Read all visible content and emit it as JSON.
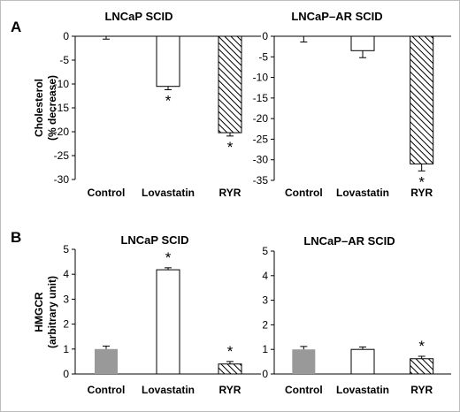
{
  "chart_data": [
    {
      "panel": "A",
      "type": "bar",
      "title": "LNCaP SCID",
      "ylabel": [
        "Cholesterol",
        "(% decrease)"
      ],
      "ylim": [
        -30,
        0
      ],
      "yticks": [
        0,
        -5,
        -10,
        -15,
        -20,
        -25,
        -30
      ],
      "categories": [
        "Control",
        "Lovastatin",
        "RYR"
      ],
      "values": [
        0,
        -10.5,
        -20.2
      ],
      "errors": [
        0.6,
        0.7,
        0.7
      ],
      "fills": [
        "#ffffff",
        "#ffffff",
        "hatch"
      ],
      "significance": [
        "",
        "*",
        "*"
      ]
    },
    {
      "panel": "",
      "type": "bar",
      "title": "LNCaP–AR SCID",
      "ylabel": [],
      "ylim": [
        -35,
        0
      ],
      "yticks": [
        0,
        -5,
        -10,
        -15,
        -20,
        -25,
        -30,
        -35
      ],
      "categories": [
        "Control",
        "Lovastatin",
        "RYR"
      ],
      "values": [
        0,
        -3.5,
        -31
      ],
      "errors": [
        1.4,
        1.7,
        1.7
      ],
      "fills": [
        "#ffffff",
        "#ffffff",
        "hatch"
      ],
      "significance": [
        "",
        "",
        "*"
      ]
    },
    {
      "panel": "B",
      "type": "bar",
      "title": "LNCaP SCID",
      "ylabel": [
        "HMGCR",
        "(arbitrary unit)"
      ],
      "ylim": [
        0,
        5
      ],
      "yticks": [
        0,
        1,
        2,
        3,
        4,
        5
      ],
      "categories": [
        "Control",
        "Lovastatin",
        "RYR"
      ],
      "values": [
        1.0,
        4.18,
        0.4
      ],
      "errors": [
        0.12,
        0.08,
        0.1
      ],
      "fills": [
        "#999999",
        "#ffffff",
        "hatch"
      ],
      "significance": [
        "",
        "*",
        "*"
      ]
    },
    {
      "panel": "",
      "type": "bar",
      "title": "LNCaP–AR SCID",
      "ylabel": [],
      "ylim": [
        0,
        5
      ],
      "yticks": [
        0,
        1,
        2,
        3,
        4,
        5
      ],
      "categories": [
        "Control",
        "Lovastatin",
        "RYR"
      ],
      "values": [
        1.0,
        1.0,
        0.62
      ],
      "errors": [
        0.12,
        0.1,
        0.1
      ],
      "fills": [
        "#999999",
        "#ffffff",
        "hatch"
      ],
      "significance": [
        "",
        "",
        "*"
      ]
    }
  ]
}
